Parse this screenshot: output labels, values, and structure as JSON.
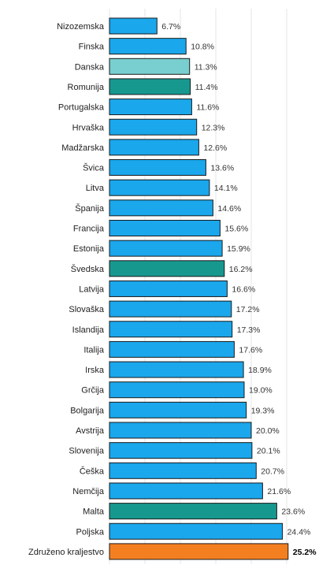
{
  "chart_data": {
    "type": "bar",
    "orientation": "horizontal",
    "title": "",
    "xlabel": "",
    "ylabel": "",
    "unit": "%",
    "xlim": [
      0,
      26
    ],
    "grid": true,
    "categories": [
      "Nizozemska",
      "Finska",
      "Danska",
      "Romunija",
      "Portugalska",
      "Hrvaška",
      "Madžarska",
      "Švica",
      "Litva",
      "Španija",
      "Francija",
      "Estonija",
      "Švedska",
      "Latvija",
      "Slovaška",
      "Islandija",
      "Italija",
      "Irska",
      "Grčija",
      "Bolgarija",
      "Avstrija",
      "Slovenija",
      "Češka",
      "Nemčija",
      "Malta",
      "Poljska",
      "Združeno kraljestvo"
    ],
    "values": [
      6.7,
      10.8,
      11.3,
      11.4,
      11.6,
      12.3,
      12.6,
      13.6,
      14.1,
      14.6,
      15.6,
      15.9,
      16.2,
      16.6,
      17.2,
      17.3,
      17.6,
      18.9,
      19.0,
      19.3,
      20.0,
      20.1,
      20.7,
      21.6,
      23.6,
      24.4,
      25.2
    ],
    "value_labels": [
      "6.7%",
      "10.8%",
      "11.3%",
      "11.4%",
      "11.6%",
      "12.3%",
      "12.6%",
      "13.6%",
      "14.1%",
      "14.6%",
      "15.6%",
      "15.9%",
      "16.2%",
      "16.6%",
      "17.2%",
      "17.3%",
      "17.6%",
      "18.9%",
      "19.0%",
      "19.3%",
      "20.0%",
      "20.1%",
      "20.7%",
      "21.6%",
      "23.6%",
      "24.4%",
      "25.2%"
    ],
    "bar_colors": [
      "#1aa7ec",
      "#1aa7ec",
      "#79cfcf",
      "#17988f",
      "#1aa7ec",
      "#1aa7ec",
      "#1aa7ec",
      "#1aa7ec",
      "#1aa7ec",
      "#1aa7ec",
      "#1aa7ec",
      "#1aa7ec",
      "#17988f",
      "#1aa7ec",
      "#1aa7ec",
      "#1aa7ec",
      "#1aa7ec",
      "#1aa7ec",
      "#1aa7ec",
      "#1aa7ec",
      "#1aa7ec",
      "#1aa7ec",
      "#1aa7ec",
      "#1aa7ec",
      "#17988f",
      "#1aa7ec",
      "#f47f20"
    ],
    "emphasized_index": 26,
    "bar_outline_color": "#1a1a1a"
  }
}
